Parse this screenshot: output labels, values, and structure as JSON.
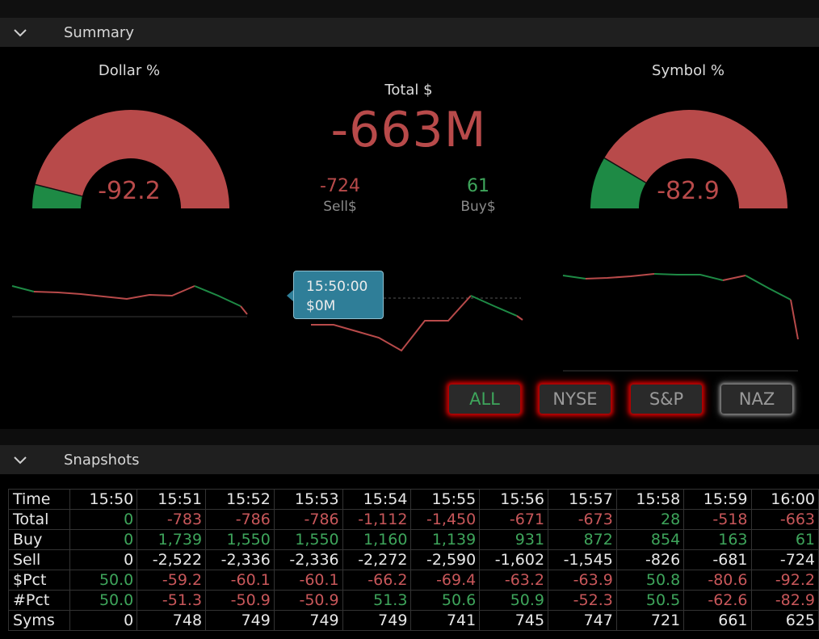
{
  "summary_header": {
    "title": "Summary"
  },
  "dollar_gauge": {
    "title": "Dollar %",
    "value": "-92.2",
    "fraction_negative": 0.922,
    "color_neg": "#b84a4a",
    "color_pos": "#1e8a45"
  },
  "symbol_gauge": {
    "title": "Symbol %",
    "value": "-82.9",
    "fraction_negative": 0.829,
    "color_neg": "#b84a4a",
    "color_pos": "#1e8a45"
  },
  "total": {
    "label": "Total $",
    "value": "-663M"
  },
  "sell": {
    "value": "-724",
    "label": "Sell$"
  },
  "buy": {
    "value": "61",
    "label": "Buy$"
  },
  "tooltip": {
    "time": "15:50:00",
    "value": "$0M"
  },
  "filters": [
    {
      "label": "ALL",
      "active": true
    },
    {
      "label": "NYSE",
      "active": false
    },
    {
      "label": "S&P",
      "active": false
    },
    {
      "label": "NAZ",
      "active": false
    }
  ],
  "snapshots_header": {
    "title": "Snapshots"
  },
  "snapshots": {
    "columns": [
      "Time",
      "15:50",
      "15:51",
      "15:52",
      "15:53",
      "15:54",
      "15:55",
      "15:56",
      "15:57",
      "15:58",
      "15:59",
      "16:00"
    ],
    "rows": [
      {
        "name": "Total",
        "cells": [
          "0",
          "-783",
          "-786",
          "-786",
          "-1,112",
          "-1,450",
          "-671",
          "-673",
          "28",
          "-518",
          "-663"
        ],
        "colors": [
          "g",
          "r",
          "r",
          "r",
          "r",
          "r",
          "r",
          "r",
          "g",
          "r",
          "r"
        ]
      },
      {
        "name": "Buy",
        "cells": [
          "0",
          "1,739",
          "1,550",
          "1,550",
          "1,160",
          "1,139",
          "931",
          "872",
          "854",
          "163",
          "61"
        ],
        "colors": [
          "g",
          "g",
          "g",
          "g",
          "g",
          "g",
          "g",
          "g",
          "g",
          "g",
          "g"
        ]
      },
      {
        "name": "Sell",
        "cells": [
          "0",
          "-2,522",
          "-2,336",
          "-2,336",
          "-2,272",
          "-2,590",
          "-1,602",
          "-1,545",
          "-826",
          "-681",
          "-724"
        ],
        "colors": [
          "w",
          "w",
          "w",
          "w",
          "w",
          "w",
          "w",
          "w",
          "w",
          "w",
          "w"
        ]
      },
      {
        "name": "$Pct",
        "cells": [
          "50.0",
          "-59.2",
          "-60.1",
          "-60.1",
          "-66.2",
          "-69.4",
          "-63.2",
          "-63.9",
          "50.8",
          "-80.6",
          "-92.2"
        ],
        "colors": [
          "g",
          "r",
          "r",
          "r",
          "r",
          "r",
          "r",
          "r",
          "g",
          "r",
          "r"
        ]
      },
      {
        "name": "#Pct",
        "cells": [
          "50.0",
          "-51.3",
          "-50.9",
          "-50.9",
          "51.3",
          "50.6",
          "50.9",
          "-52.3",
          "50.5",
          "-62.6",
          "-82.9"
        ],
        "colors": [
          "g",
          "r",
          "r",
          "r",
          "g",
          "g",
          "g",
          "r",
          "g",
          "r",
          "r"
        ]
      },
      {
        "name": "Syms",
        "cells": [
          "0",
          "748",
          "749",
          "749",
          "749",
          "741",
          "745",
          "747",
          "721",
          "661",
          "625"
        ],
        "colors": [
          "w",
          "w",
          "w",
          "w",
          "w",
          "w",
          "w",
          "w",
          "w",
          "w",
          "w"
        ]
      }
    ]
  }
}
